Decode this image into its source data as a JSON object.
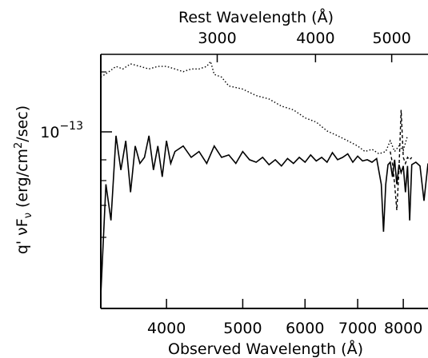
{
  "chart_data": {
    "type": "line",
    "title": "",
    "xlabel": "Observed Wavelength (Å)",
    "x2label": "Rest Wavelength (Å)",
    "ylabel": "q' νF",
    "ylabel_sub": "ν",
    "ylabel_unit": " (erg/cm",
    "ylabel_sup": "2",
    "ylabel_unit_end": "/sec)",
    "x_scale": "log",
    "y_scale": "log",
    "xlim": [
      3300,
      8600
    ],
    "x_ticks": [
      {
        "value": 4000,
        "label": "4000"
      },
      {
        "value": 5000,
        "label": "5000"
      },
      {
        "value": 6000,
        "label": "6000"
      },
      {
        "value": 7000,
        "label": "7000"
      },
      {
        "value": 8000,
        "label": "8000"
      }
    ],
    "x2_ticks": [
      {
        "value": 4640,
        "label": "3000"
      },
      {
        "value": 6187,
        "label": "4000"
      },
      {
        "value": 7733,
        "label": "5000"
      }
    ],
    "y_major": {
      "value": 1e-13,
      "base": "10",
      "exponent": "−13"
    },
    "series": [
      {
        "style": "dotted",
        "x": [
          3300,
          3380,
          3450,
          3520,
          3600,
          3700,
          3800,
          3900,
          4000,
          4100,
          4200,
          4300,
          4400,
          4500,
          4550,
          4600,
          4700,
          4800,
          5000,
          5200,
          5400,
          5600,
          5800,
          6000,
          6200,
          6400,
          6600,
          6800,
          7000,
          7150,
          7300,
          7450,
          7600,
          7700,
          7800,
          7900,
          8000,
          8100
        ],
        "y": [
          1.9e-13,
          2e-13,
          2.1e-13,
          2.05e-13,
          2.15e-13,
          2.1e-13,
          2.05e-13,
          2.1e-13,
          2.1e-13,
          2.05e-13,
          2e-13,
          2.05e-13,
          2.05e-13,
          2.1e-13,
          2.2e-13,
          1.95e-13,
          1.9e-13,
          1.75e-13,
          1.7e-13,
          1.6e-13,
          1.55e-13,
          1.45e-13,
          1.4e-13,
          1.3e-13,
          1.25e-13,
          1.15e-13,
          1.1e-13,
          1.05e-13,
          1e-13,
          9.5e-14,
          9.7e-14,
          9.3e-14,
          9.5e-14,
          1.05e-13,
          9.5e-14,
          1e-13,
          9.6e-14,
          1.1e-13
        ]
      },
      {
        "style": "dashed",
        "x": [
          7700,
          7750,
          7800,
          7850,
          7900,
          7950,
          8000,
          8050,
          8100,
          8150,
          8200
        ],
        "y": [
          9.5e-14,
          8.5e-14,
          7e-14,
          5.5e-14,
          8e-14,
          1.4e-13,
          9e-14,
          8.5e-14,
          9e-14,
          8.8e-14,
          9e-14
        ]
      },
      {
        "style": "solid",
        "x": [
          3300,
          3350,
          3400,
          3450,
          3500,
          3550,
          3600,
          3650,
          3700,
          3750,
          3800,
          3850,
          3900,
          3950,
          4000,
          4050,
          4100,
          4200,
          4300,
          4400,
          4500,
          4600,
          4700,
          4800,
          4900,
          5000,
          5100,
          5200,
          5300,
          5400,
          5500,
          5600,
          5700,
          5800,
          5900,
          6000,
          6100,
          6200,
          6300,
          6400,
          6500,
          6600,
          6700,
          6800,
          6900,
          7000,
          7100,
          7200,
          7300,
          7400,
          7500,
          7550,
          7600,
          7650,
          7700,
          7750,
          7800,
          7850,
          7900,
          7950,
          8000,
          8050,
          8100,
          8150,
          8200,
          8300,
          8400,
          8500,
          8600
        ],
        "y": [
          2.5e-14,
          7e-14,
          5e-14,
          1.1e-13,
          8e-14,
          1.05e-13,
          6.5e-14,
          1e-13,
          8.5e-14,
          9e-14,
          1.1e-13,
          8e-14,
          1e-13,
          7.5e-14,
          1.05e-13,
          8.5e-14,
          9.5e-14,
          1e-13,
          9e-14,
          9.5e-14,
          8.5e-14,
          1e-13,
          9e-14,
          9.2e-14,
          8.5e-14,
          9.5e-14,
          8.8e-14,
          8.6e-14,
          9e-14,
          8.4e-14,
          8.8e-14,
          8.3e-14,
          8.9e-14,
          8.5e-14,
          9e-14,
          8.6e-14,
          9.2e-14,
          8.7e-14,
          9e-14,
          8.6e-14,
          9.4e-14,
          8.8e-14,
          9e-14,
          9.3e-14,
          8.6e-14,
          9.1e-14,
          8.7e-14,
          8.8e-14,
          8.6e-14,
          8.9e-14,
          7e-14,
          4.5e-14,
          7e-14,
          8.4e-14,
          8.6e-14,
          7.5e-14,
          8.8e-14,
          7e-14,
          8.4e-14,
          7.8e-14,
          8.3e-14,
          6.5e-14,
          8.3e-14,
          5e-14,
          8.4e-14,
          8.6e-14,
          8.3e-14,
          6e-14,
          8.5e-14
        ]
      }
    ],
    "grid": false,
    "legend": "none"
  }
}
